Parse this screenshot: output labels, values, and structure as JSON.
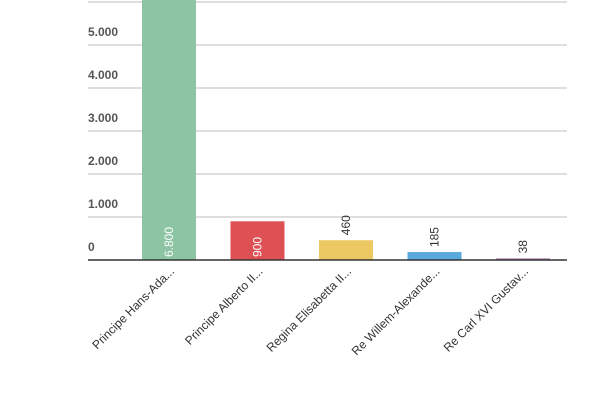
{
  "chart_data": {
    "type": "bar",
    "categories": [
      "Principe Hans-Ada...",
      "Principe Alberto II...",
      "Regina Elisabetta II...",
      "Re Willem-Alexande...",
      "Re Carl XVI Gustav..."
    ],
    "values": [
      6800,
      900,
      460,
      185,
      38
    ],
    "value_labels": [
      "6.800",
      "900",
      "460",
      "185",
      "38"
    ],
    "colors": [
      "#8cc4a4",
      "#dd5054",
      "#ecc863",
      "#5aa9dc",
      "#a67fa8"
    ],
    "yticks": [
      0,
      1000,
      2000,
      3000,
      4000,
      5000
    ],
    "ytick_labels": [
      "0",
      "1.000",
      "2.000",
      "3.000",
      "4.000",
      "5.000"
    ],
    "ylim": [
      0,
      6000
    ],
    "grid": true,
    "title": "",
    "xlabel": "",
    "ylabel": ""
  }
}
